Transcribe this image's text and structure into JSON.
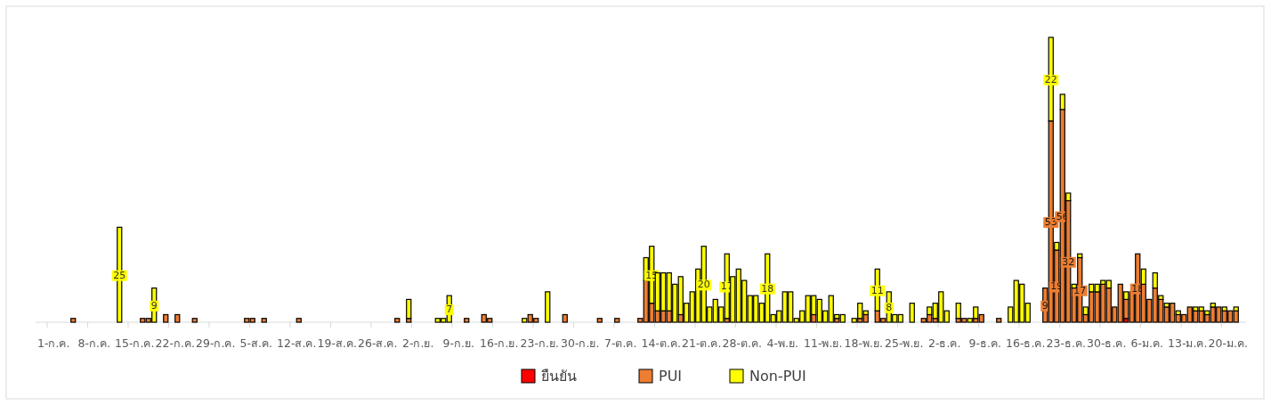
{
  "chart_data": {
    "type": "bar",
    "stacked": true,
    "legend": "bottom",
    "categories": [
      null,
      null,
      "1-ก.ค.",
      null,
      null,
      null,
      null,
      null,
      null,
      "8-ก.ค.",
      null,
      null,
      null,
      null,
      null,
      null,
      "15-ก.ค.",
      null,
      null,
      null,
      null,
      null,
      null,
      "22-ก.ค.",
      null,
      null,
      null,
      null,
      null,
      null,
      "29-ก.ค.",
      null,
      null,
      null,
      null,
      null,
      null,
      "5-ส.ค.",
      null,
      null,
      null,
      null,
      null,
      null,
      "12-ส.ค.",
      null,
      null,
      null,
      null,
      null,
      null,
      "19-ส.ค.",
      null,
      null,
      null,
      null,
      null,
      null,
      "26-ส.ค.",
      null,
      null,
      null,
      null,
      null,
      null,
      "2-ก.ย.",
      null,
      null,
      null,
      null,
      null,
      null,
      "9-ก.ย.",
      null,
      null,
      null,
      null,
      null,
      null,
      "16-ก.ย.",
      null,
      null,
      null,
      null,
      null,
      null,
      "23-ก.ย.",
      null,
      null,
      null,
      null,
      null,
      null,
      "30-ก.ย.",
      null,
      null,
      null,
      null,
      null,
      null,
      "7-ต.ค.",
      null,
      null,
      null,
      null,
      null,
      null,
      "14-ต.ค.",
      null,
      null,
      null,
      null,
      null,
      null,
      "21-ต.ค.",
      null,
      null,
      null,
      null,
      null,
      null,
      "28-ต.ค.",
      null,
      null,
      null,
      null,
      null,
      null,
      "4-พ.ย.",
      null,
      null,
      null,
      null,
      null,
      null,
      "11-พ.ย.",
      null,
      null,
      null,
      null,
      null,
      null,
      "18-พ.ย.",
      null,
      null,
      null,
      null,
      null,
      null,
      "25-พ.ย.",
      null,
      null,
      null,
      null,
      null,
      null,
      "2-ธ.ค.",
      null,
      null,
      null,
      null,
      null,
      null,
      "9-ธ.ค.",
      null,
      null,
      null,
      null,
      null,
      null,
      "16-ธ.ค.",
      null,
      null,
      null,
      null,
      null,
      null,
      "23-ธ.ค.",
      null,
      null,
      null,
      null,
      null,
      null,
      "30-ธ.ค.",
      null,
      null,
      null,
      null,
      null,
      null,
      "6-ม.ค.",
      null,
      null,
      null,
      null,
      null,
      null,
      "13-ม.ค.",
      null,
      null,
      null,
      null,
      null,
      null,
      "20-ม.ค.",
      null,
      null
    ],
    "series": [
      {
        "name": "ยืนยัน",
        "color": "#ff0000",
        "values": [
          null,
          null,
          null,
          null,
          null,
          null,
          null,
          null,
          null,
          null,
          null,
          null,
          null,
          null,
          null,
          null,
          null,
          null,
          null,
          null,
          null,
          null,
          null,
          null,
          null,
          null,
          null,
          null,
          null,
          null,
          null,
          null,
          null,
          null,
          null,
          null,
          null,
          null,
          null,
          null,
          null,
          null,
          null,
          null,
          null,
          null,
          null,
          null,
          null,
          null,
          null,
          null,
          null,
          null,
          null,
          null,
          null,
          null,
          null,
          null,
          null,
          null,
          null,
          null,
          null,
          null,
          null,
          null,
          null,
          null,
          null,
          null,
          null,
          null,
          null,
          null,
          null,
          null,
          null,
          null,
          null,
          null,
          null,
          null,
          null,
          null,
          null,
          null,
          null,
          null,
          null,
          null,
          null,
          null,
          null,
          null,
          null,
          null,
          null,
          null,
          null,
          null,
          null,
          null,
          null,
          null,
          null,
          null,
          null,
          null,
          null,
          null,
          null,
          null,
          null,
          null,
          null,
          null,
          null,
          null,
          null,
          null,
          null,
          null,
          null,
          null,
          null,
          null,
          null,
          null,
          null,
          null,
          null,
          null,
          null,
          null,
          null,
          null,
          null,
          null,
          null,
          null,
          null,
          null,
          null,
          null,
          null,
          null,
          null,
          null,
          null,
          null,
          null,
          null,
          null,
          null,
          null,
          null,
          null,
          null,
          null,
          null,
          null,
          null,
          null,
          null,
          null,
          null,
          null,
          null,
          null,
          null,
          null,
          null,
          null,
          null,
          null,
          null,
          null,
          null,
          null,
          null,
          null,
          null,
          null,
          null,
          null,
          null,
          1,
          null,
          null,
          null,
          null,
          null,
          null,
          null,
          null,
          null,
          null,
          null,
          null,
          null,
          null,
          null,
          null,
          null,
          null,
          null
        ]
      },
      {
        "name": "PUI",
        "color": "#ed7d31",
        "values": [
          null,
          null,
          null,
          null,
          null,
          null,
          1,
          null,
          null,
          null,
          null,
          null,
          null,
          null,
          null,
          null,
          null,
          null,
          1,
          1,
          null,
          null,
          2,
          null,
          2,
          null,
          null,
          1,
          null,
          null,
          null,
          null,
          null,
          null,
          null,
          null,
          1,
          1,
          null,
          1,
          null,
          null,
          null,
          null,
          null,
          1,
          null,
          null,
          null,
          null,
          null,
          null,
          null,
          null,
          null,
          null,
          null,
          null,
          null,
          null,
          null,
          null,
          1,
          null,
          1,
          null,
          null,
          null,
          null,
          null,
          null,
          null,
          null,
          null,
          1,
          null,
          null,
          2,
          1,
          null,
          null,
          null,
          null,
          null,
          null,
          2,
          1,
          null,
          null,
          null,
          null,
          2,
          null,
          null,
          null,
          null,
          null,
          1,
          null,
          null,
          1,
          null,
          null,
          null,
          1,
          11,
          5,
          3,
          3,
          3,
          null,
          2,
          null,
          null,
          null,
          null,
          null,
          null,
          null,
          1,
          null,
          null,
          null,
          null,
          null,
          null,
          null,
          null,
          null,
          null,
          null,
          null,
          null,
          null,
          2,
          null,
          null,
          null,
          1,
          null,
          null,
          null,
          1,
          2,
          null,
          3,
          1,
          null,
          null,
          null,
          null,
          null,
          null,
          1,
          2,
          1,
          null,
          null,
          null,
          1,
          1,
          null,
          1,
          2,
          null,
          null,
          1,
          null,
          null,
          null,
          null,
          null,
          null,
          null,
          9,
          53,
          19,
          56,
          32,
          9,
          17,
          2,
          8,
          8,
          10,
          9,
          4,
          10,
          5,
          8,
          18,
          10,
          6,
          9,
          6,
          4,
          5,
          2,
          2,
          4,
          3,
          3,
          2,
          4,
          4,
          3,
          3,
          3
        ],
        "value_labels": [
          null,
          null,
          null,
          null,
          null,
          null,
          null,
          null,
          null,
          null,
          null,
          null,
          null,
          null,
          null,
          null,
          null,
          null,
          null,
          null,
          null,
          null,
          null,
          null,
          null,
          null,
          null,
          null,
          null,
          null,
          null,
          null,
          null,
          null,
          null,
          null,
          null,
          null,
          null,
          null,
          null,
          null,
          null,
          null,
          null,
          null,
          null,
          null,
          null,
          null,
          null,
          null,
          null,
          null,
          null,
          null,
          null,
          null,
          null,
          null,
          null,
          null,
          null,
          null,
          null,
          null,
          null,
          null,
          null,
          null,
          null,
          null,
          null,
          null,
          null,
          null,
          null,
          null,
          null,
          null,
          null,
          null,
          null,
          null,
          null,
          null,
          null,
          null,
          null,
          null,
          null,
          null,
          null,
          null,
          null,
          null,
          null,
          null,
          null,
          null,
          null,
          null,
          null,
          null,
          null,
          null,
          null,
          null,
          null,
          null,
          null,
          null,
          null,
          null,
          null,
          null,
          null,
          null,
          null,
          null,
          null,
          null,
          null,
          null,
          null,
          null,
          null,
          null,
          null,
          null,
          null,
          null,
          null,
          null,
          null,
          null,
          null,
          null,
          null,
          null,
          null,
          null,
          null,
          null,
          null,
          null,
          null,
          null,
          null,
          null,
          null,
          null,
          null,
          null,
          null,
          null,
          null,
          null,
          null,
          null,
          null,
          null,
          null,
          null,
          null,
          null,
          null,
          null,
          null,
          null,
          null,
          null,
          null,
          null,
          "9",
          "53",
          "19",
          "56",
          "32",
          null,
          "17",
          null,
          null,
          null,
          null,
          null,
          null,
          null,
          null,
          null,
          "18",
          null,
          null,
          null,
          null,
          null,
          null,
          null,
          null,
          null,
          null,
          null,
          null,
          null,
          null,
          null,
          null,
          null
        ]
      },
      {
        "name": "Non-PUI",
        "color": "#ffff00",
        "values": [
          null,
          null,
          null,
          null,
          null,
          null,
          null,
          null,
          null,
          null,
          null,
          null,
          null,
          null,
          25,
          null,
          null,
          null,
          null,
          null,
          9,
          null,
          null,
          null,
          null,
          null,
          null,
          null,
          null,
          null,
          null,
          null,
          null,
          null,
          null,
          null,
          null,
          null,
          null,
          null,
          null,
          null,
          null,
          null,
          null,
          null,
          null,
          null,
          null,
          null,
          null,
          null,
          null,
          null,
          null,
          null,
          null,
          null,
          null,
          null,
          null,
          null,
          null,
          null,
          5,
          null,
          null,
          null,
          null,
          1,
          1,
          7,
          null,
          null,
          null,
          null,
          null,
          null,
          null,
          null,
          null,
          null,
          null,
          null,
          1,
          null,
          null,
          null,
          8,
          null,
          null,
          null,
          null,
          null,
          null,
          null,
          null,
          null,
          null,
          null,
          null,
          null,
          null,
          null,
          null,
          6,
          15,
          10,
          10,
          10,
          10,
          10,
          5,
          8,
          14,
          20,
          4,
          6,
          4,
          17,
          12,
          14,
          11,
          7,
          7,
          5,
          18,
          2,
          3,
          8,
          8,
          1,
          3,
          7,
          5,
          6,
          3,
          7,
          1,
          2,
          null,
          1,
          4,
          1,
          null,
          11,
          null,
          8,
          2,
          2,
          null,
          5,
          null,
          null,
          2,
          4,
          8,
          3,
          null,
          4,
          null,
          1,
          3,
          null,
          null,
          null,
          null,
          null,
          4,
          11,
          10,
          5,
          null,
          null,
          null,
          22,
          2,
          4,
          2,
          1,
          1,
          2,
          2,
          2,
          1,
          2,
          null,
          null,
          2,
          null,
          null,
          4,
          null,
          4,
          1,
          1,
          null,
          1,
          null,
          null,
          1,
          1,
          1,
          1,
          null,
          1,
          null,
          1
        ],
        "value_labels": [
          null,
          null,
          null,
          null,
          null,
          null,
          null,
          null,
          null,
          null,
          null,
          null,
          null,
          null,
          "25",
          null,
          null,
          null,
          null,
          null,
          "9",
          null,
          null,
          null,
          null,
          null,
          null,
          null,
          null,
          null,
          null,
          null,
          null,
          null,
          null,
          null,
          null,
          null,
          null,
          null,
          null,
          null,
          null,
          null,
          null,
          null,
          null,
          null,
          null,
          null,
          null,
          null,
          null,
          null,
          null,
          null,
          null,
          null,
          null,
          null,
          null,
          null,
          null,
          null,
          null,
          null,
          null,
          null,
          null,
          null,
          null,
          "7",
          null,
          null,
          null,
          null,
          null,
          null,
          null,
          null,
          null,
          null,
          null,
          null,
          null,
          null,
          null,
          null,
          null,
          null,
          null,
          null,
          null,
          null,
          null,
          null,
          null,
          null,
          null,
          null,
          null,
          null,
          null,
          null,
          null,
          null,
          "15",
          null,
          null,
          null,
          null,
          null,
          null,
          null,
          null,
          "20",
          null,
          null,
          null,
          "17",
          null,
          null,
          null,
          null,
          null,
          null,
          "18",
          null,
          null,
          null,
          null,
          null,
          null,
          null,
          null,
          null,
          null,
          null,
          null,
          null,
          null,
          null,
          null,
          null,
          null,
          "11",
          null,
          "8",
          null,
          null,
          null,
          null,
          null,
          null,
          null,
          null,
          null,
          null,
          null,
          null,
          null,
          null,
          null,
          null,
          null,
          null,
          null,
          null,
          null,
          null,
          null,
          null,
          null,
          null,
          null,
          "22",
          null,
          null,
          null,
          null,
          null,
          null,
          null,
          null,
          null,
          null,
          null,
          null,
          null,
          null,
          null,
          null,
          null,
          null,
          null,
          null,
          null,
          null,
          null,
          null,
          null,
          null,
          null,
          null,
          null,
          null,
          null,
          null
        ]
      }
    ]
  }
}
